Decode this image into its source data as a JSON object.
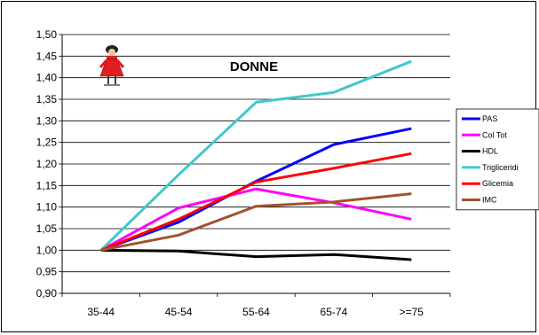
{
  "chart_data": {
    "type": "line",
    "title": "DONNE",
    "xlabel": "",
    "ylabel": "",
    "categories": [
      "35-44",
      "45-54",
      "55-64",
      "65-74",
      ">=75"
    ],
    "ylim": [
      0.9,
      1.5
    ],
    "ytick_step": 0.05,
    "yticks": [
      "0,90",
      "0,95",
      "1,00",
      "1,05",
      "1,10",
      "1,15",
      "1,20",
      "1,25",
      "1,30",
      "1,35",
      "1,40",
      "1,45",
      "1,50"
    ],
    "grid": "horizontal",
    "legend_position": "right",
    "icon": "woman-figure-icon",
    "series": [
      {
        "name": "PAS",
        "color": "#0000ff",
        "values": [
          1.0,
          1.065,
          1.16,
          1.245,
          1.282
        ]
      },
      {
        "name": "Col Tot",
        "color": "#ff00ff",
        "values": [
          1.0,
          1.098,
          1.142,
          1.11,
          1.072
        ]
      },
      {
        "name": "HDL",
        "color": "#000000",
        "values": [
          1.0,
          0.998,
          0.985,
          0.99,
          0.978
        ]
      },
      {
        "name": "Trigliceridi",
        "color": "#40c8c8",
        "values": [
          1.0,
          1.175,
          1.343,
          1.366,
          1.438
        ]
      },
      {
        "name": "Glicemia",
        "color": "#ff0000",
        "values": [
          1.0,
          1.072,
          1.158,
          1.19,
          1.224
        ]
      },
      {
        "name": "IMC",
        "color": "#a0522d",
        "values": [
          1.0,
          1.035,
          1.102,
          1.112,
          1.131
        ]
      }
    ]
  }
}
